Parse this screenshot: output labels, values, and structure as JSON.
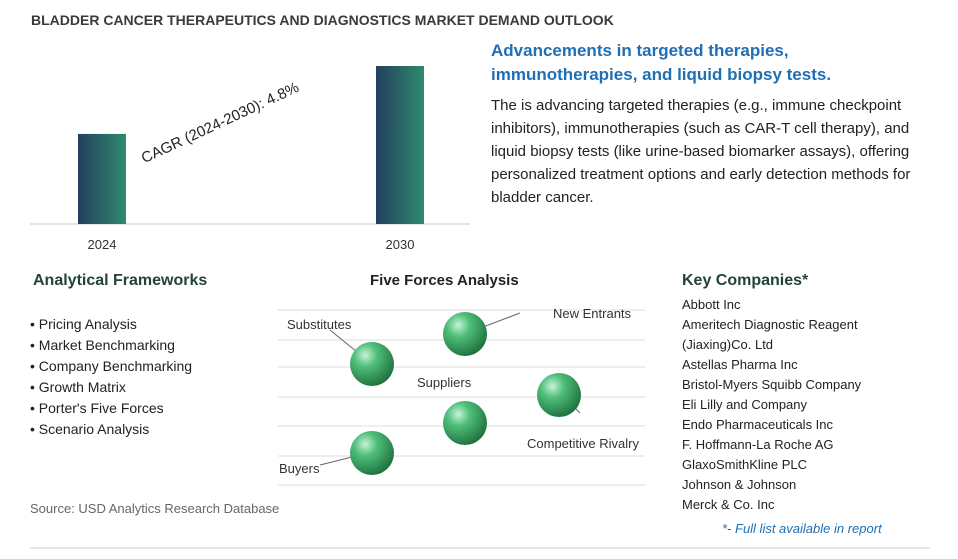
{
  "title": "BLADDER CANCER THERAPEUTICS AND DIAGNOSTICS MARKET DEMAND OUTLOOK",
  "chart_data": {
    "type": "bar",
    "categories": [
      "2024",
      "2030"
    ],
    "values": [
      57,
      100
    ],
    "annotation": "CAGR (2024-2030):   4.8%"
  },
  "highlight": {
    "heading": "Advancements in targeted therapies, immunotherapies, and liquid biopsy tests.",
    "body": "The is advancing targeted therapies (e.g., immune checkpoint inhibitors), immunotherapies (such as CAR-T cell therapy), and liquid biopsy tests (like urine-based biomarker assays), offering personalized treatment options and early detection methods for bladder cancer."
  },
  "frameworks": {
    "title": "Analytical Frameworks",
    "items": [
      "Pricing Analysis",
      "Market Benchmarking",
      "Company Benchmarking",
      "Growth Matrix",
      "Porter's Five Forces",
      "Scenario Analysis"
    ]
  },
  "five_forces": {
    "title": "Five Forces Analysis",
    "labels": [
      "Substitutes",
      "New Entrants",
      "Suppliers",
      "Competitive Rivalry",
      "Buyers"
    ]
  },
  "companies": {
    "title": "Key Companies*",
    "items": [
      "Abbott Inc",
      "Ameritech Diagnostic Reagent (Jiaxing)Co. Ltd",
      "Astellas Pharma Inc",
      "Bristol-Myers Squibb Company",
      "Eli Lilly and Company",
      "Endo Pharmaceuticals Inc",
      "F. Hoffmann-La Roche AG",
      "GlaxoSmithKline PLC",
      "Johnson & Johnson",
      "Merck & Co. Inc"
    ],
    "note": "*- Full list available in report"
  },
  "source": "Source: USD Analytics Research Database"
}
